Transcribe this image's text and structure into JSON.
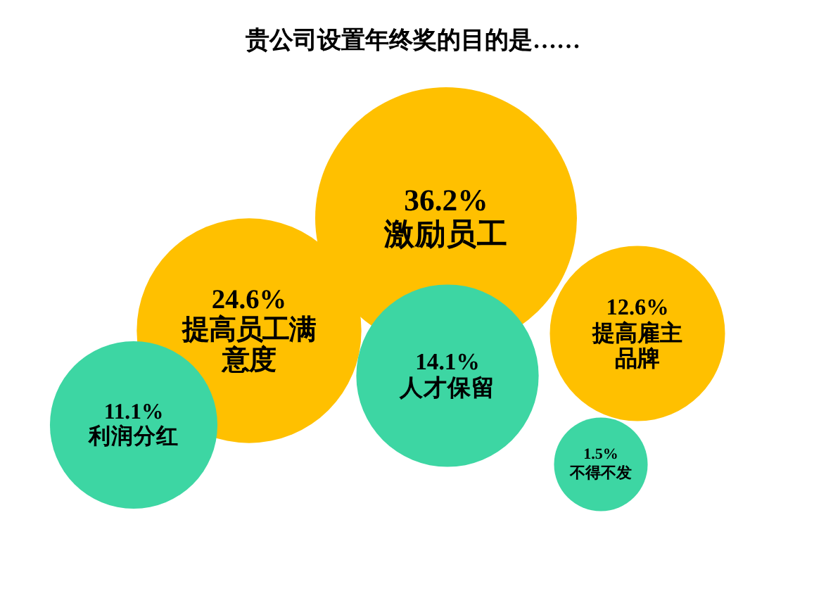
{
  "chart_data": {
    "type": "other",
    "title": "贵公司设置年终奖的目的是……",
    "categories": [
      "激励员工",
      "提高员工满意度",
      "提高雇主品牌",
      "人才保留",
      "利润分红",
      "不得不发"
    ],
    "values": [
      36.2,
      24.6,
      12.6,
      14.1,
      11.1,
      1.5
    ],
    "value_labels": [
      "36.2%",
      "24.6%",
      "12.6%",
      "14.1%",
      "11.1%",
      "1.5%"
    ],
    "colors": [
      "#ffc000",
      "#ffc000",
      "#ffc000",
      "#3dd6a3",
      "#3dd6a3",
      "#3dd6a3"
    ]
  }
}
